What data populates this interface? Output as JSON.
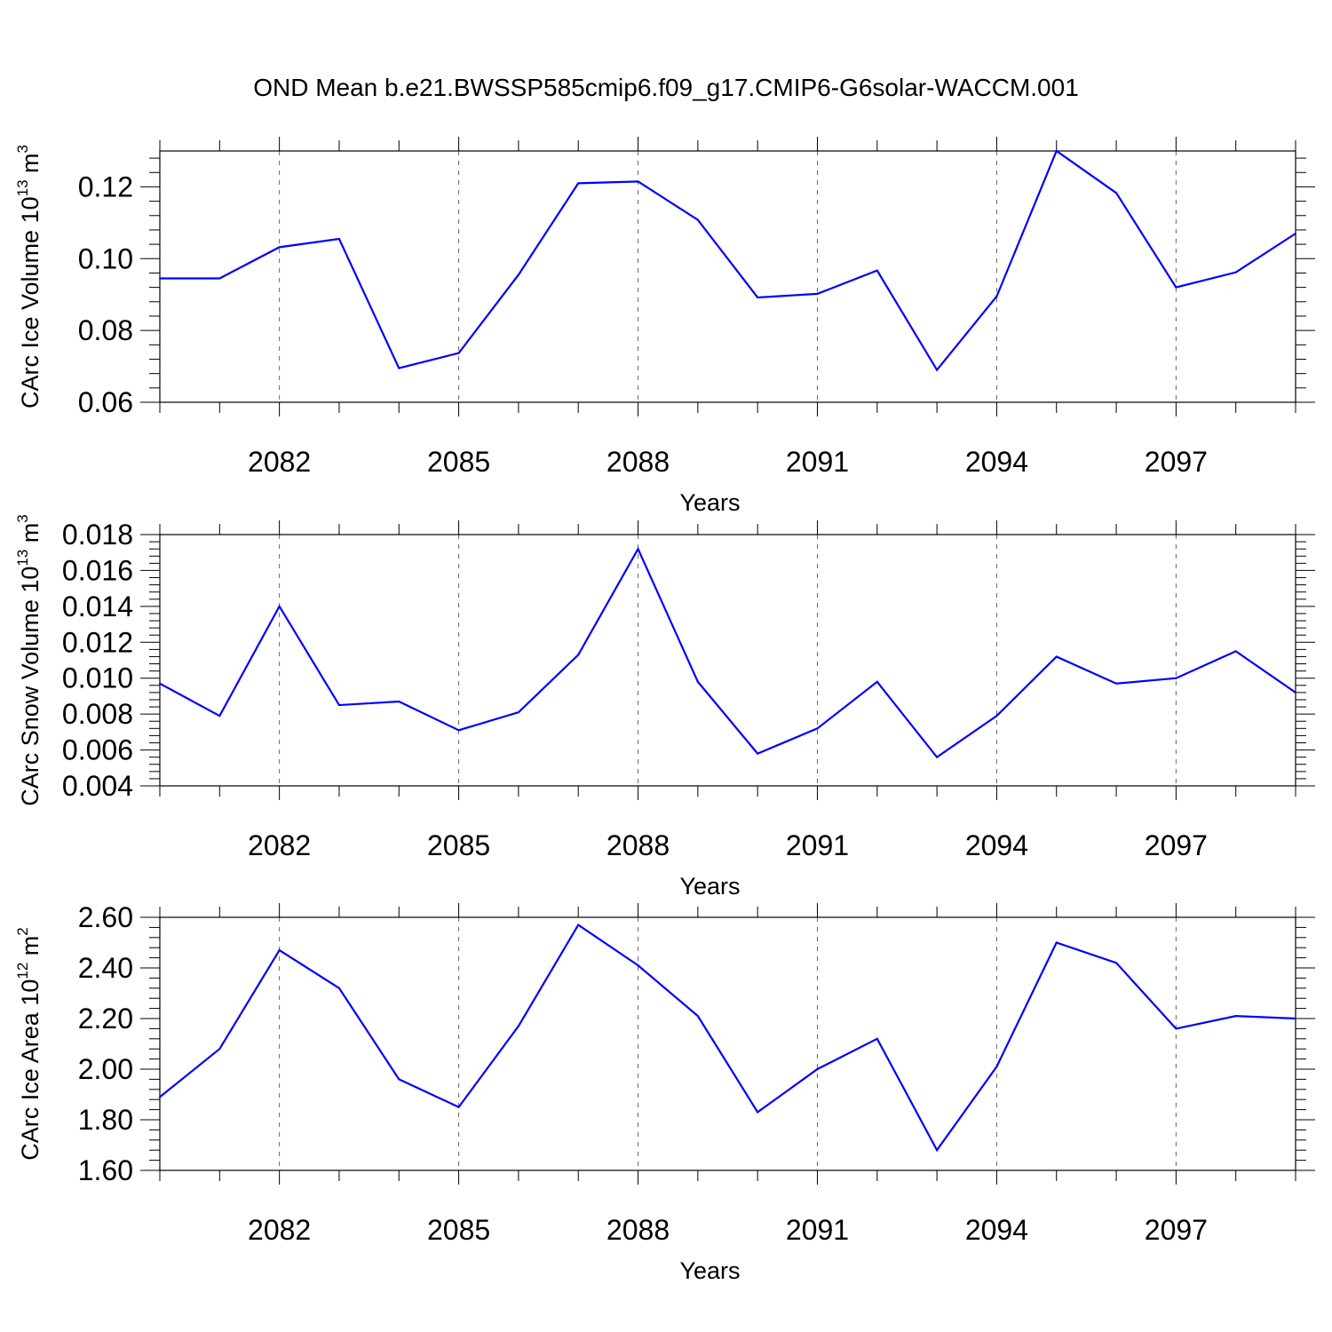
{
  "title": "OND Mean b.e21.BWSSP585cmip6.f09_g17.CMIP6-G6solar-WACCM.001",
  "colors": {
    "line": "#0000ff",
    "axis": "#000000",
    "grid": "#666666"
  },
  "chart_data": [
    {
      "type": "line",
      "ylabel": "CArc Ice Volume 10",
      "ylabel_exp": "13",
      "ylabel_unit": " m",
      "ylabel_unit_exp": "3",
      "xlabel": "Years",
      "xlim": [
        2080,
        2099
      ],
      "ylim": [
        0.06,
        0.13
      ],
      "yticks": [
        "0.06",
        "0.08",
        "0.10",
        "0.12"
      ],
      "ytick_values": [
        0.06,
        0.08,
        0.1,
        0.12
      ],
      "xticks": [
        "2082",
        "2085",
        "2088",
        "2091",
        "2094",
        "2097"
      ],
      "xtick_values": [
        2082,
        2085,
        2088,
        2091,
        2094,
        2097
      ],
      "grid": "vertical-dashed",
      "x": [
        2080,
        2081,
        2082,
        2083,
        2084,
        2085,
        2086,
        2087,
        2088,
        2089,
        2090,
        2091,
        2092,
        2093,
        2094,
        2095,
        2096,
        2097,
        2098,
        2099
      ],
      "values": [
        0.0945,
        0.0945,
        0.1032,
        0.1055,
        0.0695,
        0.0737,
        0.0955,
        0.121,
        0.1215,
        0.1108,
        0.0892,
        0.0902,
        0.0967,
        0.069,
        0.0895,
        0.13,
        0.1183,
        0.092,
        0.0962,
        0.107
      ]
    },
    {
      "type": "line",
      "ylabel": "CArc Snow Volume 10",
      "ylabel_exp": "13",
      "ylabel_unit": " m",
      "ylabel_unit_exp": "3",
      "xlabel": "Years",
      "xlim": [
        2080,
        2099
      ],
      "ylim": [
        0.004,
        0.018
      ],
      "yticks": [
        "0.004",
        "0.006",
        "0.008",
        "0.010",
        "0.012",
        "0.014",
        "0.016",
        "0.018"
      ],
      "ytick_values": [
        0.004,
        0.006,
        0.008,
        0.01,
        0.012,
        0.014,
        0.016,
        0.018
      ],
      "xticks": [
        "2082",
        "2085",
        "2088",
        "2091",
        "2094",
        "2097"
      ],
      "xtick_values": [
        2082,
        2085,
        2088,
        2091,
        2094,
        2097
      ],
      "grid": "vertical-dashed",
      "x": [
        2080,
        2081,
        2082,
        2083,
        2084,
        2085,
        2086,
        2087,
        2088,
        2089,
        2090,
        2091,
        2092,
        2093,
        2094,
        2095,
        2096,
        2097,
        2098,
        2099
      ],
      "values": [
        0.0097,
        0.0079,
        0.014,
        0.0085,
        0.0087,
        0.0071,
        0.0081,
        0.0113,
        0.0172,
        0.0098,
        0.0058,
        0.0072,
        0.0098,
        0.0056,
        0.0079,
        0.0112,
        0.0097,
        0.01,
        0.0115,
        0.0092
      ]
    },
    {
      "type": "line",
      "ylabel": "CArc Ice Area 10",
      "ylabel_exp": "12",
      "ylabel_unit": " m",
      "ylabel_unit_exp": "2",
      "xlabel": "Years",
      "xlim": [
        2080,
        2099
      ],
      "ylim": [
        1.6,
        2.6
      ],
      "yticks": [
        "1.60",
        "1.80",
        "2.00",
        "2.20",
        "2.40",
        "2.60"
      ],
      "ytick_values": [
        1.6,
        1.8,
        2.0,
        2.2,
        2.4,
        2.6
      ],
      "xticks": [
        "2082",
        "2085",
        "2088",
        "2091",
        "2094",
        "2097"
      ],
      "xtick_values": [
        2082,
        2085,
        2088,
        2091,
        2094,
        2097
      ],
      "grid": "vertical-dashed",
      "x": [
        2080,
        2081,
        2082,
        2083,
        2084,
        2085,
        2086,
        2087,
        2088,
        2089,
        2090,
        2091,
        2092,
        2093,
        2094,
        2095,
        2096,
        2097,
        2098,
        2099
      ],
      "values": [
        1.89,
        2.08,
        2.47,
        2.32,
        1.96,
        1.85,
        2.17,
        2.57,
        2.41,
        2.21,
        1.83,
        2.0,
        2.12,
        1.68,
        2.01,
        2.5,
        2.42,
        2.16,
        2.21,
        2.2
      ]
    }
  ]
}
